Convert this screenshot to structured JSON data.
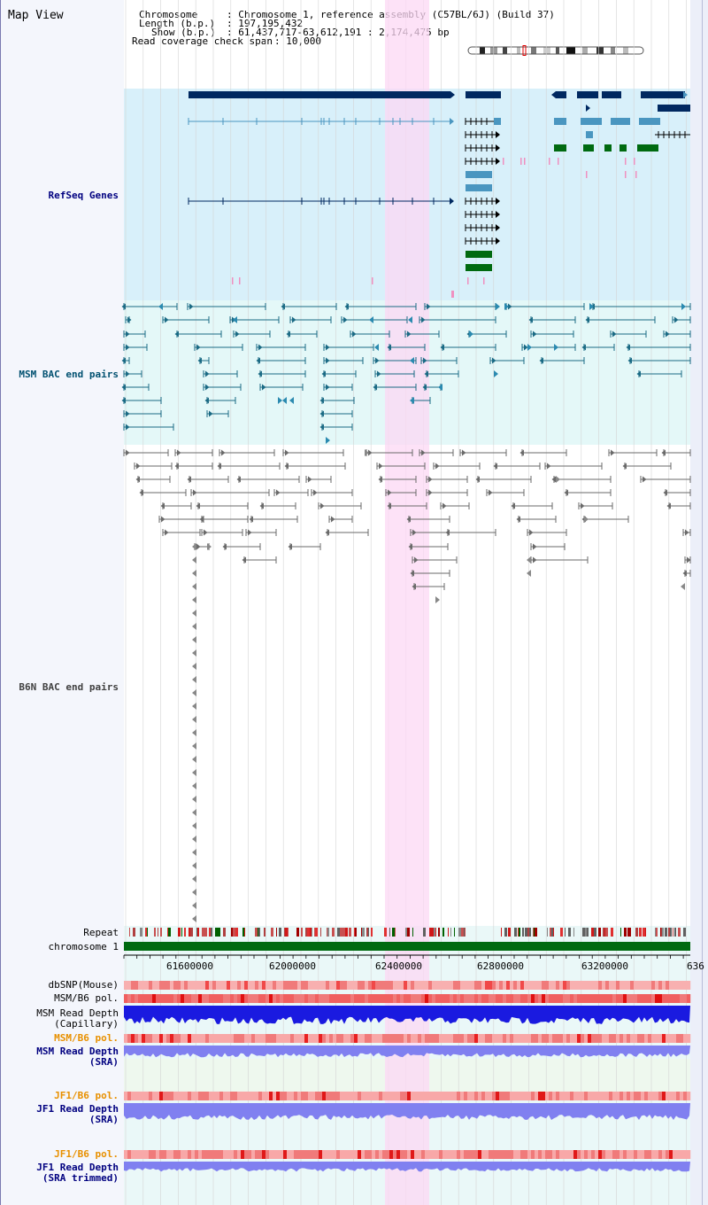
{
  "page_title": "Map View",
  "info": {
    "chromosome_label": "Chromosome",
    "chromosome_value": ": Chromosome 1, reference assembly (C57BL/6J) (Build 37)",
    "length_label": "Length (b.p.)",
    "length_value": ": 197,195,432",
    "show_label": "Show (b.p.)",
    "show_value": ": 61,437,717-63,612,191 : 2,174,475 bp",
    "coverage_label": "Read coverage check span",
    "coverage_value": ": 10,000"
  },
  "tracks": {
    "refseq": "RefSeq Genes",
    "msm_bac": "MSM BAC end pairs",
    "b6n_bac": "B6N BAC end pairs",
    "repeat": "Repeat",
    "chromosome": "chromosome 1",
    "dbsnp": "dbSNP(Mouse)",
    "msm_b6_pol_1": "MSM/B6 pol.",
    "msm_depth_cap_1": "MSM Read Depth",
    "msm_depth_cap_2": "(Capillary)",
    "msm_b6_pol_2": "MSM/B6 pol.",
    "msm_depth_sra_1": "MSM Read Depth",
    "msm_depth_sra_2": "(SRA)",
    "jf1_pol_1": "JF1/B6 pol.",
    "jf1_depth_sra_1": "JF1 Read Depth",
    "jf1_depth_sra_2": "(SRA)",
    "jf1_pol_2": "JF1/B6 pol.",
    "jf1_depth_trim_1": "JF1 Read Depth",
    "jf1_depth_trim_2": "(SRA trimmed)"
  },
  "axis_ticks": [
    "61600000",
    "62000000",
    "62400000",
    "62800000",
    "63200000",
    "636"
  ],
  "colors": {
    "refseq_bg": "#d8f0fa",
    "msm_bg": "#e4f8f8",
    "highlight": "#fcd8f4",
    "gene_dark": "#002860",
    "gene_mid": "#4a96c0",
    "gene_green": "#006a10",
    "msm_feature": "#1a6a84",
    "b6n_feature": "#6a6a6a",
    "depth_blue": "#1a1ae0",
    "depth_light": "#8080f0",
    "pol_red": "#f07070",
    "label_blue": "#000080",
    "label_orange": "#e89000",
    "label_teal": "#005070",
    "label_gray": "#404040"
  }
}
